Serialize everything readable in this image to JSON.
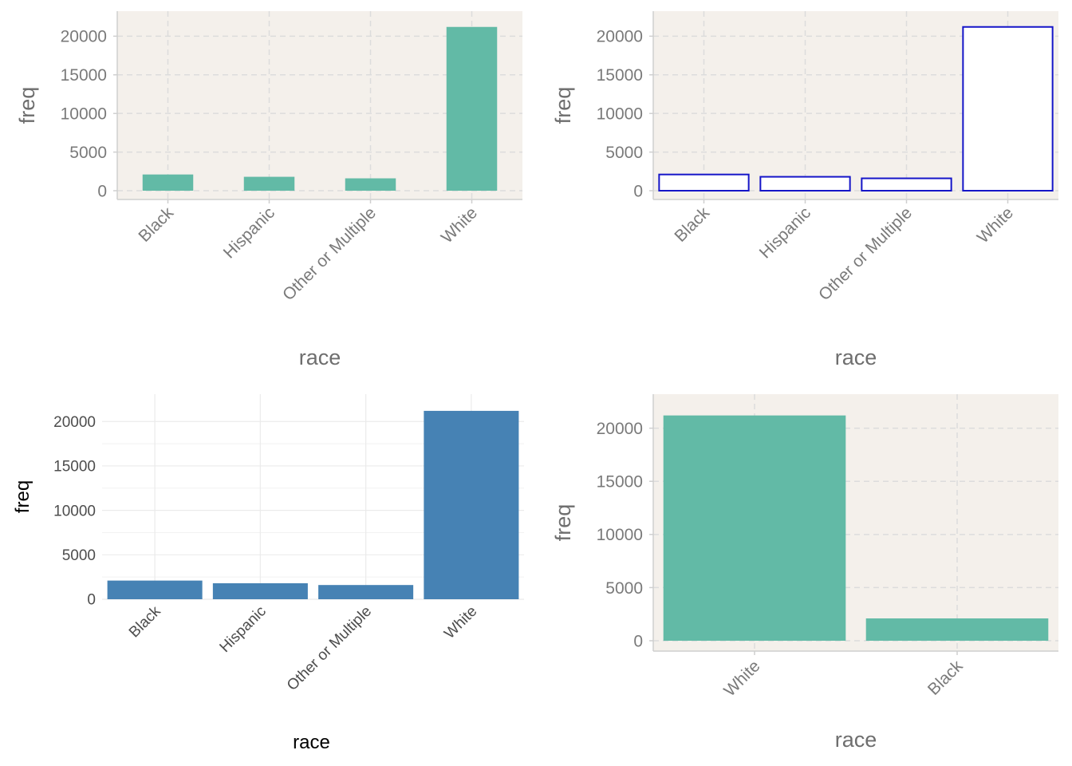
{
  "chart_data": [
    {
      "type": "bar",
      "style": "filled-teal-on-beige",
      "categories": [
        "Black",
        "Hispanic",
        "Other or Multiple",
        "White"
      ],
      "values": [
        2100,
        1800,
        1600,
        21200
      ],
      "xlabel": "race",
      "ylabel": "freq",
      "ylim": [
        0,
        22000
      ],
      "yticks": [
        0,
        5000,
        10000,
        15000,
        20000
      ],
      "grid": true,
      "grid_style": "dashed",
      "background": "#f4f0eb",
      "bar_fill": "#62baa6",
      "bar_stroke": "none",
      "axis_text_color": "#7a7a7a"
    },
    {
      "type": "bar",
      "style": "outlined-blue-on-beige",
      "categories": [
        "Black",
        "Hispanic",
        "Other or Multiple",
        "White"
      ],
      "values": [
        2100,
        1800,
        1600,
        21200
      ],
      "xlabel": "race",
      "ylabel": "freq",
      "ylim": [
        0,
        22000
      ],
      "yticks": [
        0,
        5000,
        10000,
        15000,
        20000
      ],
      "grid": true,
      "grid_style": "dashed",
      "background": "#f4f0eb",
      "bar_fill": "#ffffff",
      "bar_stroke": "#1515c8",
      "axis_text_color": "#7a7a7a"
    },
    {
      "type": "bar",
      "style": "filled-steelblue-minimal",
      "categories": [
        "Black",
        "Hispanic",
        "Other or Multiple",
        "White"
      ],
      "values": [
        2100,
        1800,
        1600,
        21200
      ],
      "xlabel": "race",
      "ylabel": "freq",
      "ylim": [
        0,
        22000
      ],
      "yticks": [
        0,
        5000,
        10000,
        15000,
        20000
      ],
      "grid": true,
      "grid_style": "solid",
      "background": "#ffffff",
      "bar_fill": "#4682b4",
      "bar_stroke": "none",
      "axis_text_color": "#4d4d4d"
    },
    {
      "type": "bar",
      "style": "filled-teal-on-beige",
      "categories": [
        "White",
        "Black"
      ],
      "values": [
        21200,
        2100
      ],
      "xlabel": "race",
      "ylabel": "freq",
      "ylim": [
        0,
        22000
      ],
      "yticks": [
        0,
        5000,
        10000,
        15000,
        20000
      ],
      "grid": true,
      "grid_style": "dashed",
      "background": "#f4f0eb",
      "bar_fill": "#62baa6",
      "bar_stroke": "none",
      "axis_text_color": "#7a7a7a"
    }
  ]
}
